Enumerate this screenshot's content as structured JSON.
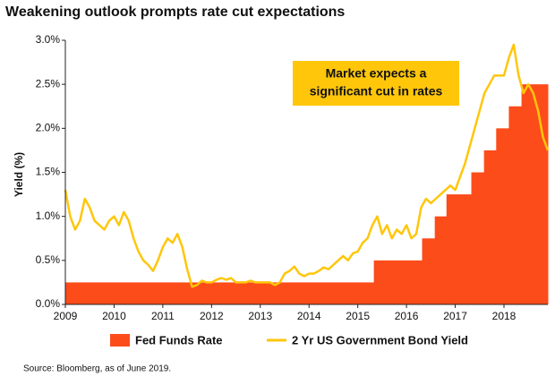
{
  "chart_data": {
    "type": "line",
    "title": "Weakening outlook prompts rate cut expectations",
    "ylabel": "Yield (%)",
    "annotation": [
      "Market expects a",
      "significant cut in rates"
    ],
    "source": "Source: Bloomberg, as of June 2019.",
    "xlim": [
      2009,
      2018.9
    ],
    "xticks": [
      2009,
      2010,
      2011,
      2012,
      2013,
      2014,
      2015,
      2016,
      2017,
      2018
    ],
    "ylim": [
      0,
      3
    ],
    "yticks": [
      {
        "value": 0,
        "label": "0.0%"
      },
      {
        "value": 0.5,
        "label": "0.5%"
      },
      {
        "value": 1,
        "label": "1.0%"
      },
      {
        "value": 1.5,
        "label": "1.5%"
      },
      {
        "value": 2,
        "label": "2.0%"
      },
      {
        "value": 2.5,
        "label": "2.5%"
      },
      {
        "value": 3,
        "label": "3.0%"
      }
    ],
    "series": [
      {
        "name": "Fed Funds Rate",
        "color": "#fc4c1a",
        "style": "step-area",
        "x": [
          2009,
          2015.33,
          2016.32,
          2016.58,
          2016.82,
          2017.33,
          2017.59,
          2017.84,
          2018.1,
          2018.36
        ],
        "values": [
          0.25,
          0.5,
          0.75,
          1,
          1.25,
          1.5,
          1.75,
          2,
          2.25,
          2.5
        ]
      },
      {
        "name": "2 Yr US Government Bond Yield",
        "color": "#ffc60a",
        "style": "line",
        "x": [
          2009,
          2009.1,
          2009.2,
          2009.3,
          2009.4,
          2009.5,
          2009.6,
          2009.7,
          2009.8,
          2009.9,
          2010,
          2010.1,
          2010.2,
          2010.3,
          2010.4,
          2010.5,
          2010.6,
          2010.7,
          2010.8,
          2010.9,
          2011,
          2011.1,
          2011.2,
          2011.3,
          2011.4,
          2011.5,
          2011.6,
          2011.7,
          2011.8,
          2011.9,
          2012,
          2012.1,
          2012.2,
          2012.3,
          2012.4,
          2012.5,
          2012.6,
          2012.7,
          2012.8,
          2012.9,
          2013,
          2013.1,
          2013.2,
          2013.3,
          2013.4,
          2013.5,
          2013.6,
          2013.7,
          2013.8,
          2013.9,
          2014,
          2014.1,
          2014.2,
          2014.3,
          2014.4,
          2014.5,
          2014.6,
          2014.7,
          2014.8,
          2014.9,
          2015,
          2015.1,
          2015.2,
          2015.3,
          2015.4,
          2015.5,
          2015.6,
          2015.7,
          2015.8,
          2015.9,
          2016,
          2016.1,
          2016.2,
          2016.3,
          2016.4,
          2016.5,
          2016.6,
          2016.7,
          2016.8,
          2016.9,
          2017,
          2017.1,
          2017.2,
          2017.3,
          2017.4,
          2017.5,
          2017.6,
          2017.7,
          2017.8,
          2017.9,
          2018,
          2018.1,
          2018.2,
          2018.3,
          2018.4,
          2018.5,
          2018.6,
          2018.7,
          2018.8,
          2018.9
        ],
        "values": [
          1.3,
          1,
          0.85,
          0.95,
          1.2,
          1.1,
          0.95,
          0.9,
          0.85,
          0.95,
          1,
          0.9,
          1.05,
          0.95,
          0.75,
          0.6,
          0.5,
          0.45,
          0.38,
          0.5,
          0.65,
          0.75,
          0.7,
          0.8,
          0.65,
          0.4,
          0.2,
          0.22,
          0.27,
          0.25,
          0.25,
          0.28,
          0.3,
          0.28,
          0.3,
          0.25,
          0.25,
          0.25,
          0.27,
          0.25,
          0.25,
          0.25,
          0.25,
          0.22,
          0.25,
          0.35,
          0.38,
          0.43,
          0.35,
          0.32,
          0.35,
          0.35,
          0.38,
          0.42,
          0.4,
          0.45,
          0.5,
          0.55,
          0.5,
          0.58,
          0.6,
          0.7,
          0.75,
          0.9,
          1,
          0.8,
          0.9,
          0.75,
          0.85,
          0.8,
          0.9,
          0.75,
          0.8,
          1.1,
          1.2,
          1.15,
          1.2,
          1.25,
          1.3,
          1.35,
          1.3,
          1.45,
          1.6,
          1.8,
          2,
          2.2,
          2.4,
          2.5,
          2.6,
          2.6,
          2.6,
          2.8,
          2.95,
          2.6,
          2.4,
          2.5,
          2.4,
          2.2,
          1.9,
          1.75
        ]
      }
    ]
  }
}
